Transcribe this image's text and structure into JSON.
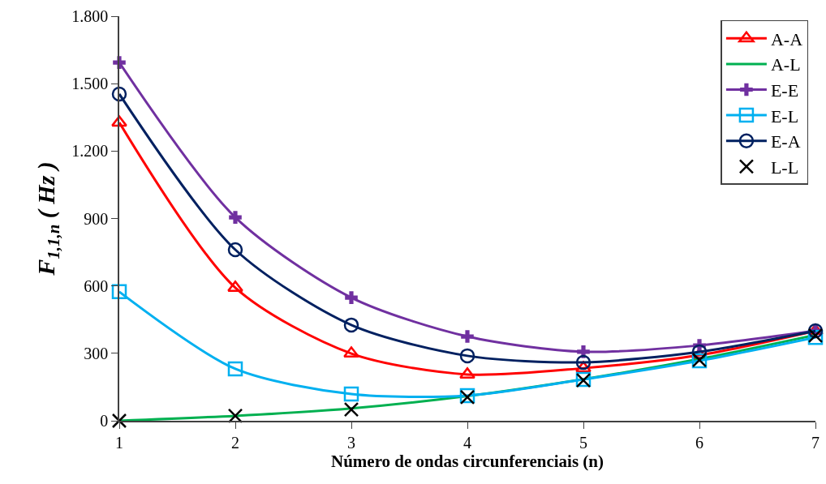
{
  "chart_data": {
    "type": "line",
    "xlabel": "Número de ondas circunferenciais (n)",
    "ylabel": "F$_{1,1,n}$ ( Hz )",
    "x": [
      1,
      2,
      3,
      4,
      5,
      6,
      7
    ],
    "xlim": [
      1,
      7
    ],
    "xticks": [
      1,
      2,
      3,
      4,
      5,
      6,
      7
    ],
    "ylim": [
      0,
      1800
    ],
    "yticks": [
      0,
      300,
      600,
      900,
      {
        "value": 1200,
        "label": "1.200"
      },
      {
        "value": 1500,
        "label": "1.500"
      },
      {
        "value": 1800,
        "label": "1.800"
      }
    ],
    "legend": "top right",
    "series": [
      {
        "name": "A-A",
        "color": "#ff0000",
        "marker": "triangle",
        "values": [
          1327,
          592,
          299,
          206,
          234,
          292,
          400
        ]
      },
      {
        "name": "A-L",
        "color": "#00b050",
        "marker": "none",
        "values": [
          0,
          22,
          55,
          110,
          185,
          275,
          382
        ]
      },
      {
        "name": "E-E",
        "color": "#7030a0",
        "marker": "cross",
        "values": [
          1594,
          905,
          548,
          375,
          307,
          335,
          400
        ]
      },
      {
        "name": "E-L",
        "color": "#00b0f0",
        "marker": "square",
        "values": [
          574,
          231,
          119,
          112,
          184,
          267,
          371
        ]
      },
      {
        "name": "E-A",
        "color": "#002060",
        "marker": "circle",
        "values": [
          1454,
          761,
          426,
          289,
          260,
          307,
          400
        ]
      },
      {
        "name": "L-L",
        "color": "#000000",
        "type": "scatter",
        "marker": "x",
        "values": [
          0,
          22,
          50,
          105,
          180,
          270,
          379
        ]
      }
    ]
  }
}
